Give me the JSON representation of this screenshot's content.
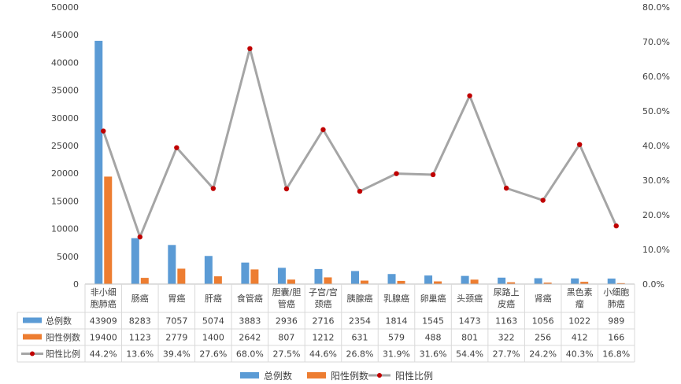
{
  "chart_data": {
    "type": "bar",
    "categories": [
      "非小细胞肺癌",
      "肠癌",
      "胃癌",
      "肝癌",
      "食管癌",
      "胆囊/胆管癌",
      "子宫/宫颈癌",
      "胰腺癌",
      "乳腺癌",
      "卵巢癌",
      "头颈癌",
      "尿路上皮癌",
      "肾癌",
      "黑色素瘤",
      "小细胞肺癌"
    ],
    "category_lines": [
      [
        "非小细",
        "胞肺癌"
      ],
      [
        "肠癌"
      ],
      [
        "胃癌"
      ],
      [
        "肝癌"
      ],
      [
        "食管癌"
      ],
      [
        "胆囊/胆",
        "管癌"
      ],
      [
        "子宫/宫",
        "颈癌"
      ],
      [
        "胰腺癌"
      ],
      [
        "乳腺癌"
      ],
      [
        "卵巢癌"
      ],
      [
        "头颈癌"
      ],
      [
        "尿路上",
        "皮癌"
      ],
      [
        "肾癌"
      ],
      [
        "黑色素",
        "瘤"
      ],
      [
        "小细胞",
        "肺癌"
      ]
    ],
    "series": [
      {
        "name": "总例数",
        "type": "bar",
        "color": "#5B9BD5",
        "axis": "left",
        "values": [
          43909,
          8283,
          7057,
          5074,
          3883,
          2936,
          2716,
          2354,
          1814,
          1545,
          1473,
          1163,
          1056,
          1022,
          989
        ]
      },
      {
        "name": "阳性例数",
        "type": "bar",
        "color": "#ED7D31",
        "axis": "left",
        "values": [
          19400,
          1123,
          2779,
          1400,
          2642,
          807,
          1212,
          631,
          579,
          488,
          801,
          322,
          256,
          412,
          166
        ]
      },
      {
        "name": "阳性比例",
        "type": "line",
        "color": "#A5A5A5",
        "marker_color": "#C00000",
        "axis": "right",
        "values": [
          44.2,
          13.6,
          39.4,
          27.6,
          68.0,
          27.5,
          44.6,
          26.8,
          31.9,
          31.6,
          54.4,
          27.7,
          24.2,
          40.3,
          16.8
        ],
        "labels": [
          "44.2%",
          "13.6%",
          "39.4%",
          "27.6%",
          "68.0%",
          "27.5%",
          "44.6%",
          "26.8%",
          "31.9%",
          "31.6%",
          "54.4%",
          "27.7%",
          "24.2%",
          "40.3%",
          "16.8%"
        ]
      }
    ],
    "y_left": {
      "min": 0,
      "max": 50000,
      "step": 5000,
      "ticks": [
        "0",
        "5000",
        "10000",
        "15000",
        "20000",
        "25000",
        "30000",
        "35000",
        "40000",
        "45000",
        "50000"
      ]
    },
    "y_right": {
      "min": 0,
      "max": 80,
      "step": 10,
      "ticks": [
        "0.0%",
        "10.0%",
        "20.0%",
        "30.0%",
        "40.0%",
        "50.0%",
        "60.0%",
        "70.0%",
        "80.0%"
      ]
    },
    "grid": false,
    "data_table": true,
    "legend_position": "bottom"
  }
}
